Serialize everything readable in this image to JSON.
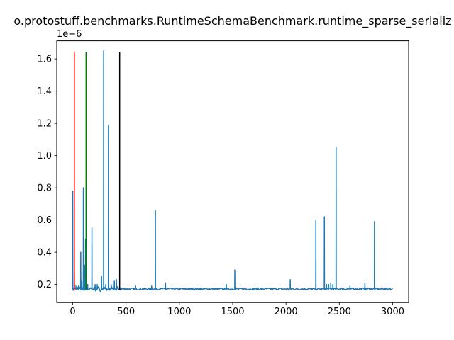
{
  "chart_data": {
    "type": "line",
    "title": "o.protostuff.benchmarks.RuntimeSchemaBenchmark.runtime_sparse_serializ",
    "xlabel": "",
    "ylabel": "",
    "y_offset_label": "1e−6",
    "xlim": [
      -150,
      3150
    ],
    "ylim": [
      0.0875,
      1.7125
    ],
    "x_ticks": [
      0,
      500,
      1000,
      1500,
      2000,
      2500,
      3000
    ],
    "x_tick_labels": [
      "0",
      "500",
      "1000",
      "1500",
      "2000",
      "2500",
      "3000"
    ],
    "y_ticks": [
      0.2,
      0.4,
      0.6,
      0.8,
      1.0,
      1.2,
      1.4,
      1.6
    ],
    "y_tick_labels": [
      "0.2",
      "0.4",
      "0.6",
      "0.8",
      "1.0",
      "1.2",
      "1.4",
      "1.6"
    ],
    "grid": false,
    "series": [
      {
        "color": "#1f77b4",
        "baseline": 0.172,
        "x_range": [
          0,
          3000
        ],
        "spikes": [
          {
            "x": 0,
            "y": 0.78
          },
          {
            "x": 15,
            "y": 0.28
          },
          {
            "x": 30,
            "y": 0.19
          },
          {
            "x": 55,
            "y": 0.19
          },
          {
            "x": 75,
            "y": 0.4
          },
          {
            "x": 85,
            "y": 0.22
          },
          {
            "x": 100,
            "y": 0.8
          },
          {
            "x": 110,
            "y": 0.32
          },
          {
            "x": 120,
            "y": 0.48
          },
          {
            "x": 140,
            "y": 0.2
          },
          {
            "x": 180,
            "y": 0.55
          },
          {
            "x": 210,
            "y": 0.2
          },
          {
            "x": 230,
            "y": 0.2
          },
          {
            "x": 270,
            "y": 0.25
          },
          {
            "x": 290,
            "y": 1.65
          },
          {
            "x": 310,
            "y": 0.2
          },
          {
            "x": 335,
            "y": 1.19
          },
          {
            "x": 360,
            "y": 0.2
          },
          {
            "x": 390,
            "y": 0.22
          },
          {
            "x": 410,
            "y": 0.23
          },
          {
            "x": 590,
            "y": 0.19
          },
          {
            "x": 740,
            "y": 0.19
          },
          {
            "x": 775,
            "y": 0.66
          },
          {
            "x": 870,
            "y": 0.21
          },
          {
            "x": 1440,
            "y": 0.2
          },
          {
            "x": 1520,
            "y": 0.29
          },
          {
            "x": 2040,
            "y": 0.23
          },
          {
            "x": 2280,
            "y": 0.6
          },
          {
            "x": 2360,
            "y": 0.62
          },
          {
            "x": 2380,
            "y": 0.2
          },
          {
            "x": 2400,
            "y": 0.2
          },
          {
            "x": 2420,
            "y": 0.21
          },
          {
            "x": 2440,
            "y": 0.2
          },
          {
            "x": 2470,
            "y": 1.05
          },
          {
            "x": 2600,
            "y": 0.19
          },
          {
            "x": 2740,
            "y": 0.21
          },
          {
            "x": 2830,
            "y": 0.59
          }
        ]
      }
    ],
    "vertical_lines": [
      {
        "x": 15,
        "y_range": [
          0.165,
          1.645
        ],
        "color": "#ff0000"
      },
      {
        "x": 125,
        "y_range": [
          0.165,
          1.645
        ],
        "color": "#008000"
      },
      {
        "x": 440,
        "y_range": [
          0.165,
          1.645
        ],
        "color": "#000000"
      }
    ]
  }
}
